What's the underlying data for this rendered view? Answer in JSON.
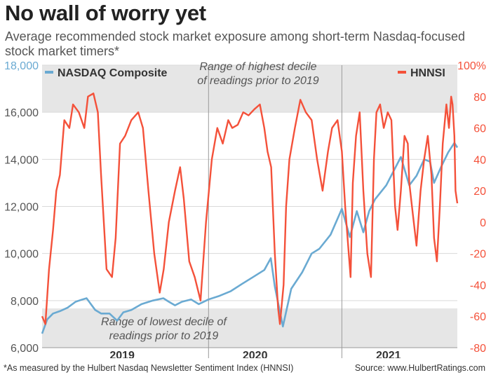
{
  "title": "No wall of worry yet",
  "subtitle": "Average recommended stock market exposure among short-term Nasdaq-focused stock market timers*",
  "footnote": "*As measured by the Hulbert Nasdaq Newsletter Sentiment Index (HNNSI)",
  "source": "Source: www.HulbertRatings.com",
  "colors": {
    "nasdaq": "#6aaad2",
    "hnnsi": "#f4513a",
    "band": "#e6e6e6",
    "left_axis": "#555555",
    "right_axis": "#f4513a"
  },
  "chart_data": {
    "type": "line",
    "x_range": [
      "2018-06-01",
      "2021-07-15"
    ],
    "x_ticks": [
      {
        "label": "2019",
        "date": "2019-01-01"
      },
      {
        "label": "2020",
        "date": "2020-01-01"
      },
      {
        "label": "2021",
        "date": "2021-01-01"
      }
    ],
    "year_dividers": [
      "2019-09-01",
      "2020-09-01"
    ],
    "left_axis": {
      "ylim": [
        6000,
        18000
      ],
      "ticks": [
        "6,000",
        "8,000",
        "10,000",
        "12,000",
        "14,000",
        "16,000",
        "18,000"
      ],
      "tick_values": [
        6000,
        8000,
        10000,
        12000,
        14000,
        16000,
        18000
      ]
    },
    "right_axis": {
      "ylim": [
        -80,
        100
      ],
      "ticks": [
        "-80",
        "-60",
        "-40",
        "-20",
        "0",
        "20",
        "40",
        "60",
        "80",
        "100%"
      ],
      "tick_values": [
        -80,
        -60,
        -40,
        -20,
        0,
        20,
        40,
        60,
        80,
        100
      ]
    },
    "bands": [
      {
        "axis": "right",
        "from": 70,
        "to": 100,
        "label_lines": [
          "Range of highest decile",
          "of readings prior to 2019"
        ]
      },
      {
        "axis": "right",
        "from": -80,
        "to": -55,
        "label_lines": [
          "Range of lowest decile of",
          "readings prior to 2019"
        ]
      }
    ],
    "series": [
      {
        "name": "NASDAQ Composite",
        "axis": "left",
        "points": [
          [
            "2018-06-01",
            6600
          ],
          [
            "2018-06-15",
            7200
          ],
          [
            "2018-07-01",
            7450
          ],
          [
            "2018-07-20",
            7550
          ],
          [
            "2018-08-10",
            7700
          ],
          [
            "2018-09-01",
            7950
          ],
          [
            "2018-09-20",
            8050
          ],
          [
            "2018-10-01",
            8100
          ],
          [
            "2018-10-25",
            7600
          ],
          [
            "2018-11-10",
            7450
          ],
          [
            "2018-12-03",
            7450
          ],
          [
            "2018-12-24",
            7150
          ],
          [
            "2019-01-10",
            7500
          ],
          [
            "2019-02-01",
            7600
          ],
          [
            "2019-03-01",
            7850
          ],
          [
            "2019-04-01",
            8000
          ],
          [
            "2019-04-30",
            8100
          ],
          [
            "2019-05-15",
            7950
          ],
          [
            "2019-06-01",
            7800
          ],
          [
            "2019-06-20",
            7950
          ],
          [
            "2019-07-15",
            8050
          ],
          [
            "2019-08-05",
            7850
          ],
          [
            "2019-09-01",
            8050
          ],
          [
            "2019-10-01",
            8200
          ],
          [
            "2019-11-01",
            8400
          ],
          [
            "2019-12-01",
            8700
          ],
          [
            "2020-01-01",
            9000
          ],
          [
            "2020-02-01",
            9300
          ],
          [
            "2020-02-19",
            9800
          ],
          [
            "2020-03-01",
            8600
          ],
          [
            "2020-03-23",
            6900
          ],
          [
            "2020-04-15",
            8500
          ],
          [
            "2020-05-15",
            9200
          ],
          [
            "2020-06-10",
            10000
          ],
          [
            "2020-07-01",
            10200
          ],
          [
            "2020-08-01",
            10800
          ],
          [
            "2020-09-01",
            11900
          ],
          [
            "2020-09-23",
            10700
          ],
          [
            "2020-10-12",
            11800
          ],
          [
            "2020-10-30",
            10900
          ],
          [
            "2020-11-15",
            11800
          ],
          [
            "2020-12-01",
            12300
          ],
          [
            "2021-01-01",
            12900
          ],
          [
            "2021-02-10",
            14100
          ],
          [
            "2021-03-05",
            12900
          ],
          [
            "2021-03-25",
            13300
          ],
          [
            "2021-04-15",
            14000
          ],
          [
            "2021-05-01",
            13900
          ],
          [
            "2021-05-12",
            13000
          ],
          [
            "2021-06-01",
            13700
          ],
          [
            "2021-06-20",
            14300
          ],
          [
            "2021-07-07",
            14700
          ],
          [
            "2021-07-15",
            14500
          ]
        ]
      },
      {
        "name": "HNNSI",
        "axis": "right",
        "points": [
          [
            "2018-06-01",
            -60
          ],
          [
            "2018-06-10",
            -65
          ],
          [
            "2018-06-20",
            -30
          ],
          [
            "2018-07-01",
            -5
          ],
          [
            "2018-07-10",
            20
          ],
          [
            "2018-07-20",
            30
          ],
          [
            "2018-08-01",
            65
          ],
          [
            "2018-08-15",
            60
          ],
          [
            "2018-08-25",
            75
          ],
          [
            "2018-09-10",
            70
          ],
          [
            "2018-09-25",
            60
          ],
          [
            "2018-10-05",
            80
          ],
          [
            "2018-10-20",
            82
          ],
          [
            "2018-11-01",
            70
          ],
          [
            "2018-11-10",
            30
          ],
          [
            "2018-11-25",
            -30
          ],
          [
            "2018-12-10",
            -35
          ],
          [
            "2018-12-20",
            -10
          ],
          [
            "2019-01-01",
            50
          ],
          [
            "2019-01-15",
            55
          ],
          [
            "2019-02-01",
            65
          ],
          [
            "2019-02-20",
            70
          ],
          [
            "2019-03-05",
            60
          ],
          [
            "2019-03-20",
            20
          ],
          [
            "2019-04-05",
            -20
          ],
          [
            "2019-04-20",
            -45
          ],
          [
            "2019-05-01",
            -30
          ],
          [
            "2019-05-15",
            0
          ],
          [
            "2019-06-01",
            20
          ],
          [
            "2019-06-15",
            35
          ],
          [
            "2019-06-25",
            15
          ],
          [
            "2019-07-10",
            -25
          ],
          [
            "2019-07-25",
            -35
          ],
          [
            "2019-08-10",
            -50
          ],
          [
            "2019-08-25",
            0
          ],
          [
            "2019-09-10",
            40
          ],
          [
            "2019-09-25",
            60
          ],
          [
            "2019-10-10",
            50
          ],
          [
            "2019-10-25",
            65
          ],
          [
            "2019-11-05",
            60
          ],
          [
            "2019-11-20",
            62
          ],
          [
            "2019-12-05",
            70
          ],
          [
            "2019-12-20",
            68
          ],
          [
            "2020-01-05",
            72
          ],
          [
            "2020-01-20",
            75
          ],
          [
            "2020-02-01",
            60
          ],
          [
            "2020-02-10",
            45
          ],
          [
            "2020-02-20",
            35
          ],
          [
            "2020-03-01",
            -20
          ],
          [
            "2020-03-10",
            -55
          ],
          [
            "2020-03-15",
            -65
          ],
          [
            "2020-03-25",
            -40
          ],
          [
            "2020-04-01",
            10
          ],
          [
            "2020-04-10",
            40
          ],
          [
            "2020-04-25",
            60
          ],
          [
            "2020-05-10",
            78
          ],
          [
            "2020-05-25",
            70
          ],
          [
            "2020-06-10",
            65
          ],
          [
            "2020-06-25",
            40
          ],
          [
            "2020-07-10",
            20
          ],
          [
            "2020-07-25",
            45
          ],
          [
            "2020-08-05",
            60
          ],
          [
            "2020-08-20",
            65
          ],
          [
            "2020-09-01",
            45
          ],
          [
            "2020-09-10",
            10
          ],
          [
            "2020-09-20",
            -20
          ],
          [
            "2020-09-25",
            -35
          ],
          [
            "2020-10-01",
            25
          ],
          [
            "2020-10-10",
            55
          ],
          [
            "2020-10-20",
            70
          ],
          [
            "2020-10-30",
            20
          ],
          [
            "2020-11-10",
            -20
          ],
          [
            "2020-11-20",
            -35
          ],
          [
            "2020-11-28",
            40
          ],
          [
            "2020-12-05",
            70
          ],
          [
            "2020-12-15",
            75
          ],
          [
            "2020-12-25",
            60
          ],
          [
            "2021-01-05",
            70
          ],
          [
            "2021-01-15",
            65
          ],
          [
            "2021-01-25",
            10
          ],
          [
            "2021-02-01",
            -5
          ],
          [
            "2021-02-10",
            20
          ],
          [
            "2021-02-20",
            55
          ],
          [
            "2021-03-01",
            50
          ],
          [
            "2021-03-05",
            25
          ],
          [
            "2021-03-15",
            5
          ],
          [
            "2021-03-25",
            -15
          ],
          [
            "2021-04-05",
            20
          ],
          [
            "2021-04-15",
            40
          ],
          [
            "2021-04-25",
            55
          ],
          [
            "2021-05-05",
            30
          ],
          [
            "2021-05-12",
            -10
          ],
          [
            "2021-05-20",
            -25
          ],
          [
            "2021-05-28",
            10
          ],
          [
            "2021-06-05",
            50
          ],
          [
            "2021-06-15",
            75
          ],
          [
            "2021-06-22",
            60
          ],
          [
            "2021-06-28",
            80
          ],
          [
            "2021-07-02",
            75
          ],
          [
            "2021-07-07",
            55
          ],
          [
            "2021-07-10",
            20
          ],
          [
            "2021-07-13",
            15
          ],
          [
            "2021-07-15",
            12
          ]
        ]
      }
    ]
  }
}
